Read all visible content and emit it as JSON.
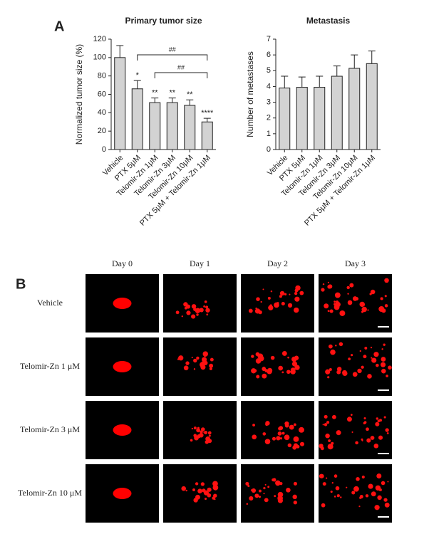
{
  "panel_labels": [
    "A",
    "B"
  ],
  "chart_data": [
    {
      "type": "bar",
      "title": "Primary tumor size",
      "ylabel": "Normalized tumor size (%)",
      "categories": [
        "Vehicle",
        "PTX 5μM",
        "Telomir-Zn 1μM",
        "Telomir-Zn 3μM",
        "Telomir-Zn 10μM",
        "PTX 5μM + Telomir-Zn 1μM"
      ],
      "values": [
        100,
        66,
        51,
        51,
        48,
        30
      ],
      "errors": [
        13,
        9,
        5,
        5,
        6,
        4
      ],
      "significance": [
        null,
        "*",
        "**",
        "**",
        "**",
        "****"
      ],
      "comparisons": [
        {
          "from": "PTX 5μM",
          "to": "PTX 5μM + Telomir-Zn 1μM",
          "label": "##"
        },
        {
          "from": "Telomir-Zn 1μM",
          "to": "PTX 5μM + Telomir-Zn 1μM",
          "label": "##"
        }
      ],
      "color": "#d3d3d3",
      "ylim": [
        0,
        120
      ],
      "yticks": [
        0,
        20,
        40,
        60,
        80,
        100,
        120
      ]
    },
    {
      "type": "bar",
      "title": "Metastasis",
      "ylabel": "Number of metastases",
      "categories": [
        "Vehicle",
        "PTX 5μM",
        "Telomir-Zn 1μM",
        "Telomir-Zn 3μM",
        "Telomir-Zn 10μM",
        "PTX 5μM + Telomir-Zn 1μM"
      ],
      "values": [
        3.9,
        3.95,
        3.95,
        4.65,
        5.15,
        5.45
      ],
      "errors": [
        0.75,
        0.65,
        0.7,
        0.65,
        0.85,
        0.8
      ],
      "color": "#d3d3d3",
      "ylim": [
        0,
        7
      ],
      "yticks": [
        0,
        1,
        2,
        3,
        4,
        5,
        6,
        7
      ]
    }
  ],
  "imaging": {
    "columns": [
      "Day 0",
      "Day 1",
      "Day 2",
      "Day 3"
    ],
    "rows": [
      "Vehicle",
      "Telomir-Zn 1 μM",
      "Telomir-Zn 3 μM",
      "Telomir-Zn 10 μM"
    ]
  }
}
